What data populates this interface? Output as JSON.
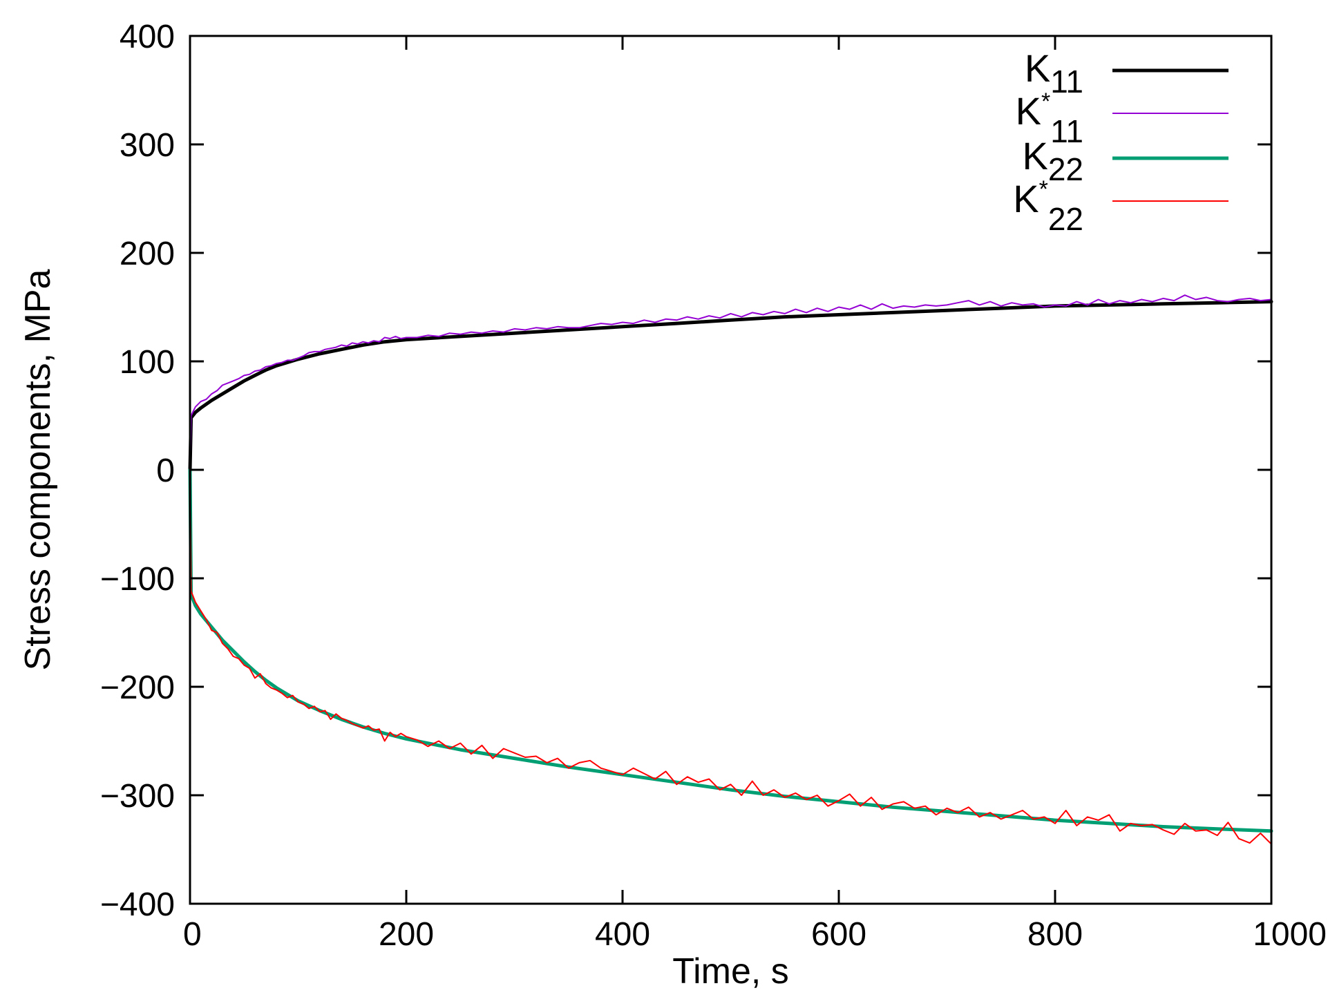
{
  "chart_data": {
    "type": "line",
    "title": "",
    "xlabel": "Time, s",
    "ylabel": "Stress components, MPa",
    "xlim": [
      0,
      1000
    ],
    "ylim": [
      -400,
      400
    ],
    "x_ticks": [
      0,
      200,
      400,
      600,
      800,
      1000
    ],
    "y_ticks": [
      -400,
      -300,
      -200,
      -100,
      0,
      100,
      200,
      300,
      400
    ],
    "x_tick_labels": [
      "0",
      "200",
      "400",
      "600",
      "800",
      "1000"
    ],
    "y_tick_labels": [
      "−400",
      "−300",
      "−200",
      "−100",
      "0",
      "100",
      "200",
      "300",
      "400"
    ],
    "grid": false,
    "legend_position": "top-right",
    "series": [
      {
        "name": "K11",
        "legend": {
          "base": "K",
          "sup": "",
          "sub": "11"
        },
        "color": "#000000",
        "style": "thick",
        "x": [
          0,
          1,
          5,
          10,
          20,
          30,
          40,
          50,
          60,
          70,
          80,
          90,
          100,
          120,
          140,
          160,
          180,
          200,
          250,
          300,
          350,
          400,
          450,
          500,
          550,
          600,
          650,
          700,
          750,
          800,
          850,
          900,
          950,
          1000
        ],
        "y": [
          0,
          48,
          53,
          57,
          64,
          70,
          76,
          82,
          87,
          92,
          96,
          99,
          102,
          107,
          111,
          115,
          118,
          120,
          123,
          126,
          129,
          132,
          135,
          138,
          141,
          143,
          145,
          147,
          149,
          151,
          152,
          153,
          154,
          155
        ]
      },
      {
        "name": "K*11",
        "legend": {
          "base": "K",
          "sup": "*",
          "sub": "11"
        },
        "color": "#9400d3",
        "style": "thin",
        "x": [
          0,
          1,
          5,
          10,
          15,
          20,
          25,
          30,
          35,
          40,
          45,
          50,
          55,
          60,
          65,
          70,
          75,
          80,
          85,
          90,
          95,
          100,
          105,
          110,
          115,
          120,
          125,
          130,
          135,
          140,
          145,
          150,
          155,
          160,
          165,
          170,
          175,
          180,
          185,
          190,
          195,
          200,
          210,
          220,
          230,
          240,
          250,
          260,
          270,
          280,
          290,
          300,
          310,
          320,
          330,
          340,
          350,
          360,
          370,
          380,
          390,
          400,
          410,
          420,
          430,
          440,
          450,
          460,
          470,
          480,
          490,
          500,
          510,
          520,
          530,
          540,
          550,
          560,
          570,
          580,
          590,
          600,
          610,
          620,
          630,
          640,
          650,
          660,
          670,
          680,
          690,
          700,
          710,
          720,
          730,
          740,
          750,
          760,
          770,
          780,
          790,
          800,
          810,
          820,
          830,
          840,
          850,
          860,
          870,
          880,
          890,
          900,
          910,
          920,
          930,
          940,
          950,
          960,
          970,
          980,
          990,
          1000
        ],
        "y": [
          0,
          50,
          58,
          63,
          65,
          70,
          73,
          78,
          80,
          82,
          84,
          87,
          88,
          91,
          92,
          95,
          96,
          98,
          99,
          101,
          101,
          103,
          105,
          108,
          109,
          109,
          111,
          112,
          113,
          115,
          114,
          117,
          116,
          118,
          117,
          119,
          118,
          122,
          121,
          123,
          121,
          122,
          122,
          124,
          123,
          126,
          125,
          127,
          126,
          128,
          127,
          130,
          129,
          131,
          130,
          132,
          131,
          131,
          133,
          135,
          134,
          136,
          135,
          138,
          136,
          139,
          138,
          141,
          139,
          142,
          140,
          144,
          141,
          145,
          143,
          146,
          144,
          148,
          145,
          149,
          146,
          150,
          148,
          152,
          148,
          153,
          149,
          151,
          150,
          152,
          151,
          152,
          154,
          156,
          152,
          155,
          151,
          154,
          152,
          153,
          150,
          152,
          151,
          155,
          152,
          157,
          153,
          156,
          154,
          157,
          155,
          158,
          156,
          161,
          157,
          159,
          156,
          155,
          157,
          158,
          156,
          157
        ]
      },
      {
        "name": "K22",
        "legend": {
          "base": "K",
          "sup": "",
          "sub": "22"
        },
        "color": "#009e73",
        "style": "thick",
        "x": [
          0,
          1,
          5,
          10,
          20,
          30,
          40,
          50,
          60,
          70,
          80,
          90,
          100,
          120,
          140,
          160,
          180,
          200,
          250,
          300,
          350,
          400,
          450,
          500,
          550,
          600,
          650,
          700,
          750,
          800,
          850,
          900,
          950,
          1000
        ],
        "y": [
          0,
          -115,
          -125,
          -133,
          -145,
          -157,
          -167,
          -177,
          -186,
          -194,
          -201,
          -207,
          -213,
          -222,
          -230,
          -237,
          -243,
          -248,
          -258,
          -266,
          -274,
          -281,
          -288,
          -295,
          -301,
          -306,
          -311,
          -315,
          -319,
          -323,
          -326,
          -329,
          -331,
          -333
        ]
      },
      {
        "name": "K*22",
        "legend": {
          "base": "K",
          "sup": "*",
          "sub": "22"
        },
        "color": "#ff0000",
        "style": "thin",
        "x": [
          0,
          1,
          5,
          10,
          15,
          20,
          25,
          30,
          35,
          40,
          45,
          50,
          55,
          60,
          65,
          70,
          75,
          80,
          85,
          90,
          95,
          100,
          105,
          110,
          115,
          120,
          125,
          130,
          135,
          140,
          145,
          150,
          155,
          160,
          165,
          170,
          175,
          180,
          185,
          190,
          195,
          200,
          210,
          220,
          230,
          240,
          250,
          260,
          270,
          280,
          290,
          300,
          310,
          320,
          330,
          340,
          350,
          360,
          370,
          380,
          390,
          400,
          410,
          420,
          430,
          440,
          450,
          460,
          470,
          480,
          490,
          500,
          510,
          520,
          530,
          540,
          550,
          560,
          570,
          580,
          590,
          600,
          610,
          620,
          630,
          640,
          650,
          660,
          670,
          680,
          690,
          700,
          710,
          720,
          730,
          740,
          750,
          760,
          770,
          780,
          790,
          800,
          810,
          820,
          830,
          840,
          850,
          860,
          870,
          880,
          890,
          900,
          910,
          920,
          930,
          940,
          950,
          960,
          970,
          980,
          990,
          1000
        ],
        "y": [
          0,
          -112,
          -122,
          -130,
          -138,
          -148,
          -150,
          -160,
          -165,
          -172,
          -174,
          -180,
          -183,
          -192,
          -188,
          -197,
          -201,
          -203,
          -206,
          -210,
          -208,
          -214,
          -216,
          -220,
          -218,
          -223,
          -222,
          -230,
          -225,
          -229,
          -231,
          -234,
          -236,
          -238,
          -236,
          -240,
          -239,
          -250,
          -242,
          -246,
          -243,
          -246,
          -249,
          -255,
          -250,
          -257,
          -252,
          -262,
          -254,
          -266,
          -257,
          -261,
          -265,
          -264,
          -270,
          -266,
          -275,
          -270,
          -268,
          -275,
          -278,
          -281,
          -275,
          -280,
          -285,
          -278,
          -290,
          -283,
          -288,
          -285,
          -295,
          -290,
          -300,
          -287,
          -300,
          -295,
          -302,
          -298,
          -304,
          -300,
          -310,
          -305,
          -299,
          -310,
          -302,
          -313,
          -308,
          -306,
          -312,
          -310,
          -318,
          -312,
          -316,
          -311,
          -320,
          -316,
          -322,
          -318,
          -314,
          -322,
          -320,
          -326,
          -314,
          -328,
          -320,
          -323,
          -318,
          -333,
          -326,
          -328,
          -327,
          -332,
          -336,
          -326,
          -333,
          -332,
          -337,
          -325,
          -340,
          -344,
          -335,
          -345
        ]
      }
    ]
  }
}
